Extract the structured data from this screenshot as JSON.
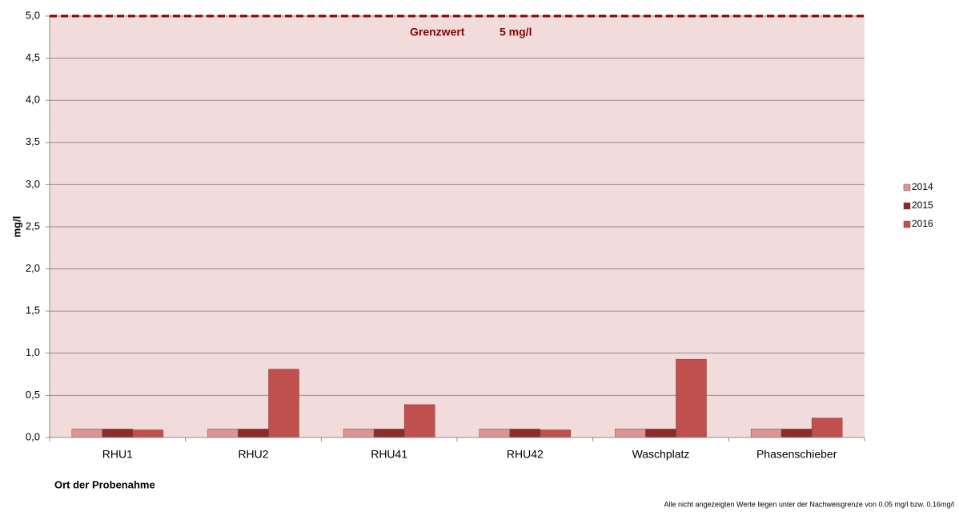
{
  "chart_data": {
    "type": "bar",
    "ylabel": "mg/l",
    "xlabel": "Ort der Probenahme",
    "footnote": "Alle nicht angezeigten Werte liegen unter der Nachweisgrenze von 0.05 mg/l bzw. 0.16mg/l",
    "categories": [
      "RHU1",
      "RHU2",
      "RHU41",
      "RHU42",
      "Waschplatz",
      "Phasenschieber"
    ],
    "series": [
      {
        "name": "2014",
        "color": "#d99694",
        "values": [
          0.1,
          0.1,
          0.1,
          0.1,
          0.1,
          0.1
        ]
      },
      {
        "name": "2015",
        "color": "#8b2b2b",
        "values": [
          0.1,
          0.1,
          0.1,
          0.1,
          0.1,
          0.1
        ]
      },
      {
        "name": "2016",
        "color": "#c0504d",
        "values": [
          0.09,
          0.81,
          0.39,
          0.09,
          0.93,
          0.23
        ]
      }
    ],
    "ylim": [
      0,
      5
    ],
    "yticks": [
      {
        "value": 0,
        "label": "0,0"
      },
      {
        "value": 0.5,
        "label": "0,5"
      },
      {
        "value": 1,
        "label": "1,0"
      },
      {
        "value": 1.5,
        "label": "1,5"
      },
      {
        "value": 2,
        "label": "2,0"
      },
      {
        "value": 2.5,
        "label": "2,5"
      },
      {
        "value": 3,
        "label": "3,0"
      },
      {
        "value": 3.5,
        "label": "3,5"
      },
      {
        "value": 4,
        "label": "4,0"
      },
      {
        "value": 4.5,
        "label": "4,5"
      },
      {
        "value": 5,
        "label": "5,0"
      }
    ],
    "grid": true,
    "legend": "right",
    "threshold": {
      "value": 5,
      "label": "Grenzwert",
      "value_label": "5 mg/l",
      "color": "#8b0000"
    }
  }
}
